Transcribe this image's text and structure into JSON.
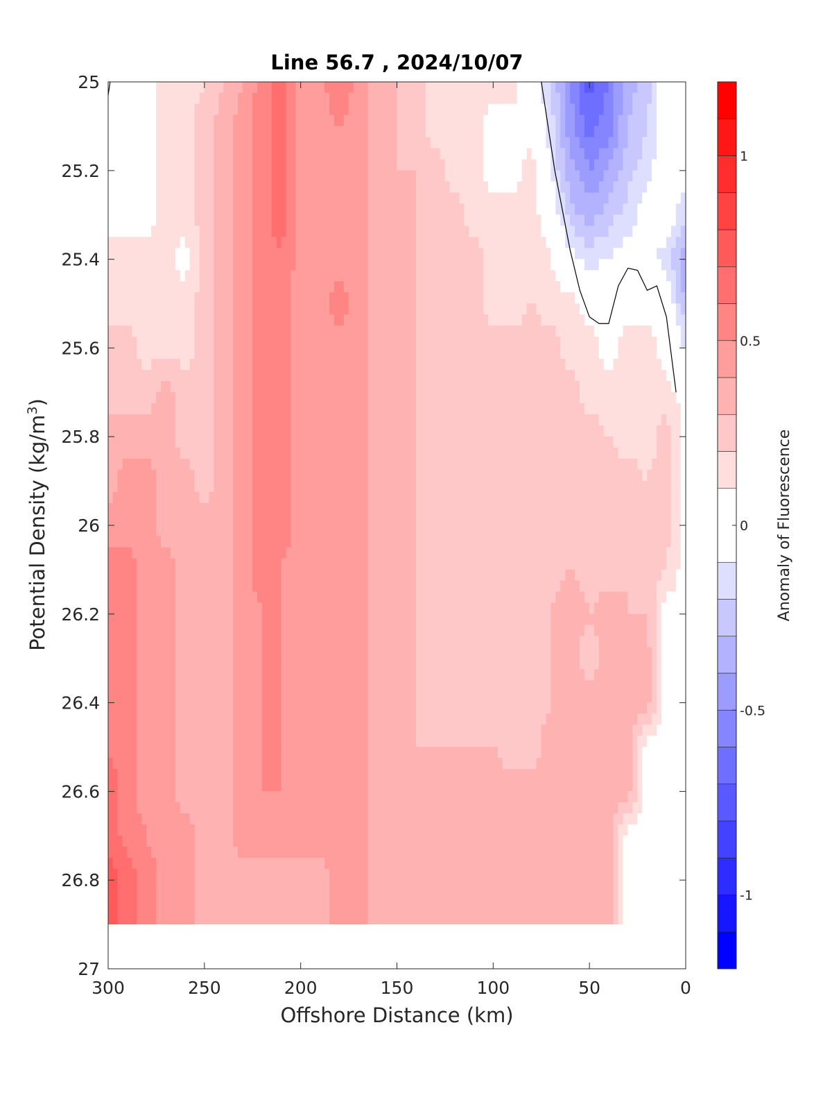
{
  "chart_data": {
    "type": "heatmap",
    "subtype": "filled-contour section",
    "title": "Line 56.7 , 2024/10/07",
    "xlabel": "Offshore Distance (km)",
    "ylabel_main": "Potential Density (kg/m",
    "ylabel_sup": "3",
    "ylabel_close": ")",
    "colorbar_label": "Anomaly of Fluorescence",
    "xlim": [
      300,
      0
    ],
    "x_reversed": true,
    "ylim": [
      25,
      27
    ],
    "y_reversed": true,
    "x_ticks": [
      "300",
      "250",
      "200",
      "150",
      "100",
      "50",
      "0"
    ],
    "x_tick_values": [
      300,
      250,
      200,
      150,
      100,
      50,
      0
    ],
    "y_ticks": [
      "25",
      "25.2",
      "25.4",
      "25.6",
      "25.8",
      "26",
      "26.2",
      "26.4",
      "26.6",
      "26.8",
      "27"
    ],
    "y_tick_values": [
      25,
      25.2,
      25.4,
      25.6,
      25.8,
      26,
      26.2,
      26.4,
      26.6,
      26.8,
      27
    ],
    "colorbar": {
      "limits": [
        -1.2,
        1.2
      ],
      "ticks": [
        "-1",
        "-0.5",
        "0",
        "0.5",
        "1"
      ],
      "tick_values": [
        -1,
        -0.5,
        0,
        0.5,
        1
      ],
      "levels": [
        -1.2,
        -1.1,
        -1.0,
        -0.9,
        -0.8,
        -0.7,
        -0.6,
        -0.5,
        -0.4,
        -0.3,
        -0.2,
        -0.1,
        0.1,
        0.2,
        0.3,
        0.4,
        0.5,
        0.6,
        0.7,
        0.8,
        0.9,
        1.0,
        1.1,
        1.2
      ],
      "colormap": "blue-white-red",
      "neg_color": "#0000ff",
      "pos_color": "#ff0000",
      "zero_color": "#ffffff"
    },
    "grid": false,
    "data_extent": {
      "x_offshore_km": [
        300,
        0
      ],
      "density_max": 26.9
    },
    "contour_zero_line_color": "#000000",
    "field_columns_x": [
      300,
      290,
      280,
      270,
      260,
      250,
      240,
      230,
      220,
      210,
      200,
      190,
      180,
      170,
      160,
      150,
      140,
      130,
      120,
      110,
      100,
      90,
      80,
      70,
      60,
      50,
      40,
      30,
      20,
      10,
      0
    ],
    "field_rows_y": [
      25.0,
      25.1,
      25.2,
      25.3,
      25.4,
      25.5,
      25.6,
      25.7,
      25.8,
      25.9,
      26.0,
      26.1,
      26.2,
      26.3,
      26.4,
      26.5,
      26.6,
      26.7,
      26.8,
      26.9
    ],
    "field_values": [
      [
        0.05,
        0.05,
        0.05,
        0.15,
        0.15,
        0.2,
        0.3,
        0.4,
        0.55,
        0.65,
        0.45,
        0.45,
        0.6,
        0.45,
        0.35,
        0.3,
        0.25,
        0.15,
        0.15,
        0.15,
        0.15,
        0.15,
        0.0,
        -0.2,
        -0.5,
        -0.75,
        -0.6,
        -0.35,
        -0.25,
        0.0,
        0.0
      ],
      [
        0.05,
        0.05,
        0.05,
        0.15,
        0.15,
        0.25,
        0.35,
        0.45,
        0.55,
        0.65,
        0.45,
        0.45,
        0.5,
        0.45,
        0.35,
        0.3,
        0.25,
        0.15,
        0.15,
        0.15,
        0.05,
        0.05,
        0.05,
        -0.15,
        -0.45,
        -0.65,
        -0.55,
        -0.3,
        -0.2,
        0.0,
        0.0
      ],
      [
        0.05,
        0.05,
        0.05,
        0.15,
        0.15,
        0.25,
        0.35,
        0.45,
        0.55,
        0.65,
        0.45,
        0.45,
        0.45,
        0.45,
        0.35,
        0.3,
        0.3,
        0.25,
        0.15,
        0.15,
        0.05,
        0.05,
        0.15,
        -0.1,
        -0.35,
        -0.5,
        -0.4,
        -0.25,
        -0.15,
        0.0,
        0.0
      ],
      [
        0.05,
        0.05,
        0.05,
        0.15,
        0.15,
        0.25,
        0.35,
        0.45,
        0.55,
        0.65,
        0.45,
        0.45,
        0.45,
        0.45,
        0.35,
        0.35,
        0.3,
        0.25,
        0.25,
        0.15,
        0.15,
        0.15,
        0.15,
        0.0,
        -0.25,
        -0.35,
        -0.25,
        -0.15,
        -0.05,
        0.0,
        -0.2
      ],
      [
        0.15,
        0.15,
        0.15,
        0.15,
        0.05,
        0.25,
        0.35,
        0.45,
        0.55,
        0.6,
        0.45,
        0.45,
        0.45,
        0.45,
        0.35,
        0.35,
        0.3,
        0.25,
        0.25,
        0.25,
        0.15,
        0.15,
        0.2,
        0.1,
        -0.05,
        -0.15,
        -0.1,
        -0.05,
        -0.05,
        -0.15,
        -0.4
      ],
      [
        0.15,
        0.15,
        0.15,
        0.15,
        0.15,
        0.25,
        0.35,
        0.45,
        0.55,
        0.55,
        0.45,
        0.45,
        0.55,
        0.45,
        0.35,
        0.35,
        0.3,
        0.25,
        0.25,
        0.25,
        0.15,
        0.15,
        0.2,
        0.15,
        0.15,
        0.05,
        0.05,
        0.05,
        0.05,
        0.0,
        -0.3
      ],
      [
        0.25,
        0.25,
        0.15,
        0.15,
        0.15,
        0.25,
        0.35,
        0.45,
        0.55,
        0.55,
        0.45,
        0.45,
        0.45,
        0.45,
        0.35,
        0.35,
        0.3,
        0.25,
        0.25,
        0.25,
        0.25,
        0.25,
        0.25,
        0.25,
        0.15,
        0.15,
        0.05,
        0.15,
        0.15,
        0.05,
        -0.1
      ],
      [
        0.25,
        0.25,
        0.25,
        0.35,
        0.25,
        0.25,
        0.35,
        0.45,
        0.55,
        0.55,
        0.45,
        0.45,
        0.45,
        0.45,
        0.35,
        0.35,
        0.3,
        0.25,
        0.25,
        0.25,
        0.25,
        0.25,
        0.25,
        0.25,
        0.25,
        0.15,
        0.15,
        0.15,
        0.15,
        0.15,
        0.05
      ],
      [
        0.35,
        0.35,
        0.35,
        0.35,
        0.25,
        0.25,
        0.35,
        0.45,
        0.55,
        0.55,
        0.45,
        0.45,
        0.45,
        0.45,
        0.35,
        0.35,
        0.3,
        0.25,
        0.25,
        0.25,
        0.25,
        0.25,
        0.25,
        0.25,
        0.25,
        0.25,
        0.2,
        0.15,
        0.15,
        0.25,
        0.05
      ],
      [
        0.35,
        0.45,
        0.45,
        0.35,
        0.35,
        0.25,
        0.35,
        0.45,
        0.55,
        0.55,
        0.45,
        0.45,
        0.45,
        0.45,
        0.35,
        0.35,
        0.3,
        0.25,
        0.25,
        0.25,
        0.25,
        0.25,
        0.25,
        0.25,
        0.25,
        0.25,
        0.25,
        0.25,
        0.2,
        0.25,
        0.05
      ],
      [
        0.45,
        0.45,
        0.45,
        0.35,
        0.35,
        0.35,
        0.35,
        0.45,
        0.55,
        0.55,
        0.45,
        0.45,
        0.45,
        0.45,
        0.35,
        0.35,
        0.3,
        0.25,
        0.25,
        0.25,
        0.25,
        0.25,
        0.25,
        0.25,
        0.25,
        0.25,
        0.25,
        0.25,
        0.25,
        0.25,
        0.05
      ],
      [
        0.55,
        0.55,
        0.45,
        0.45,
        0.35,
        0.35,
        0.35,
        0.45,
        0.55,
        0.5,
        0.45,
        0.45,
        0.45,
        0.45,
        0.35,
        0.35,
        0.3,
        0.25,
        0.25,
        0.25,
        0.25,
        0.25,
        0.25,
        0.25,
        0.3,
        0.25,
        0.25,
        0.3,
        0.25,
        0.2,
        0.05
      ],
      [
        0.6,
        0.55,
        0.45,
        0.45,
        0.35,
        0.35,
        0.35,
        0.45,
        0.5,
        0.5,
        0.45,
        0.45,
        0.45,
        0.45,
        0.35,
        0.35,
        0.3,
        0.25,
        0.25,
        0.25,
        0.25,
        0.25,
        0.25,
        0.3,
        0.35,
        0.3,
        0.35,
        0.3,
        0.3,
        0.05,
        0.05
      ],
      [
        0.6,
        0.55,
        0.45,
        0.45,
        0.35,
        0.35,
        0.35,
        0.45,
        0.5,
        0.5,
        0.45,
        0.45,
        0.45,
        0.45,
        0.35,
        0.35,
        0.3,
        0.25,
        0.25,
        0.25,
        0.25,
        0.25,
        0.25,
        0.3,
        0.35,
        0.25,
        0.35,
        0.35,
        0.35,
        0.05,
        0.05
      ],
      [
        0.6,
        0.55,
        0.45,
        0.45,
        0.35,
        0.35,
        0.35,
        0.45,
        0.5,
        0.5,
        0.45,
        0.45,
        0.45,
        0.45,
        0.35,
        0.35,
        0.3,
        0.25,
        0.25,
        0.25,
        0.25,
        0.25,
        0.25,
        0.3,
        0.35,
        0.35,
        0.35,
        0.35,
        0.35,
        0.05,
        0.05
      ],
      [
        0.6,
        0.55,
        0.45,
        0.45,
        0.35,
        0.35,
        0.35,
        0.45,
        0.5,
        0.5,
        0.45,
        0.45,
        0.45,
        0.45,
        0.35,
        0.35,
        0.3,
        0.3,
        0.3,
        0.3,
        0.3,
        0.25,
        0.25,
        0.35,
        0.35,
        0.35,
        0.35,
        0.35,
        0.05,
        0.05,
        0.05
      ],
      [
        0.65,
        0.55,
        0.45,
        0.45,
        0.35,
        0.35,
        0.35,
        0.45,
        0.5,
        0.5,
        0.45,
        0.45,
        0.45,
        0.45,
        0.35,
        0.35,
        0.35,
        0.35,
        0.35,
        0.35,
        0.35,
        0.35,
        0.35,
        0.35,
        0.35,
        0.35,
        0.35,
        0.35,
        0.05,
        0.05,
        0.05
      ],
      [
        0.65,
        0.55,
        0.5,
        0.45,
        0.45,
        0.35,
        0.35,
        0.45,
        0.45,
        0.45,
        0.45,
        0.45,
        0.45,
        0.45,
        0.35,
        0.35,
        0.35,
        0.35,
        0.35,
        0.35,
        0.35,
        0.35,
        0.35,
        0.35,
        0.35,
        0.35,
        0.35,
        0.05,
        0.05,
        0.05,
        0.05
      ],
      [
        0.75,
        0.65,
        0.55,
        0.45,
        0.45,
        0.35,
        0.35,
        0.35,
        0.35,
        0.35,
        0.35,
        0.35,
        0.45,
        0.45,
        0.35,
        0.35,
        0.35,
        0.35,
        0.35,
        0.35,
        0.35,
        0.35,
        0.35,
        0.35,
        0.35,
        0.35,
        0.35,
        0.05,
        0.05,
        0.05,
        0.05
      ],
      [
        0.75,
        0.65,
        0.55,
        0.45,
        0.45,
        0.35,
        0.35,
        0.35,
        0.35,
        0.35,
        0.35,
        0.35,
        0.45,
        0.45,
        0.35,
        0.35,
        0.35,
        0.35,
        0.35,
        0.35,
        0.35,
        0.35,
        0.35,
        0.35,
        0.35,
        0.35,
        0.35,
        0.05,
        0.05,
        0.05,
        0.05
      ]
    ]
  }
}
